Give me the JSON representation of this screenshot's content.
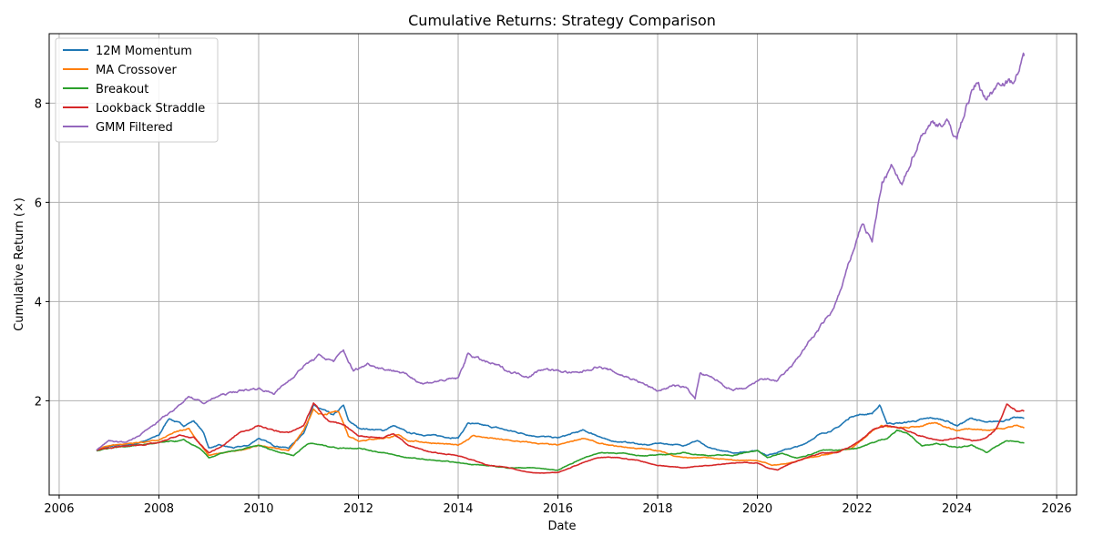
{
  "chart_data": {
    "type": "line",
    "title": "Cumulative Returns: Strategy Comparison",
    "xlabel": "Date",
    "ylabel": "Cumulative Return (×)",
    "xlim": [
      2005.8,
      2026.4
    ],
    "ylim": [
      0.1,
      9.4
    ],
    "x_ticks": [
      2006,
      2008,
      2010,
      2012,
      2014,
      2016,
      2018,
      2020,
      2022,
      2024,
      2026
    ],
    "y_ticks": [
      2,
      4,
      6,
      8
    ],
    "grid": true,
    "legend_position": "upper left",
    "series": [
      {
        "name": "12M Momentum",
        "color": "#1f77b4",
        "points": [
          [
            2006.75,
            1.0
          ],
          [
            2007.0,
            1.08
          ],
          [
            2007.5,
            1.12
          ],
          [
            2008.0,
            1.3
          ],
          [
            2008.2,
            1.65
          ],
          [
            2008.5,
            1.5
          ],
          [
            2008.7,
            1.6
          ],
          [
            2008.9,
            1.35
          ],
          [
            2009.0,
            1.05
          ],
          [
            2009.2,
            1.1
          ],
          [
            2009.5,
            1.05
          ],
          [
            2009.8,
            1.1
          ],
          [
            2010.0,
            1.25
          ],
          [
            2010.3,
            1.1
          ],
          [
            2010.6,
            1.05
          ],
          [
            2010.9,
            1.35
          ],
          [
            2011.1,
            1.9
          ],
          [
            2011.3,
            1.8
          ],
          [
            2011.5,
            1.7
          ],
          [
            2011.7,
            1.9
          ],
          [
            2011.8,
            1.6
          ],
          [
            2012.0,
            1.45
          ],
          [
            2012.5,
            1.4
          ],
          [
            2012.7,
            1.5
          ],
          [
            2013.0,
            1.35
          ],
          [
            2013.5,
            1.3
          ],
          [
            2014.0,
            1.25
          ],
          [
            2014.2,
            1.55
          ],
          [
            2014.5,
            1.5
          ],
          [
            2014.8,
            1.45
          ],
          [
            2015.0,
            1.4
          ],
          [
            2015.5,
            1.3
          ],
          [
            2016.0,
            1.25
          ],
          [
            2016.5,
            1.4
          ],
          [
            2016.8,
            1.3
          ],
          [
            2017.0,
            1.2
          ],
          [
            2017.5,
            1.15
          ],
          [
            2017.8,
            1.1
          ],
          [
            2018.0,
            1.15
          ],
          [
            2018.5,
            1.1
          ],
          [
            2018.8,
            1.2
          ],
          [
            2019.0,
            1.05
          ],
          [
            2019.5,
            0.95
          ],
          [
            2020.0,
            1.0
          ],
          [
            2020.2,
            0.9
          ],
          [
            2020.5,
            1.0
          ],
          [
            2020.9,
            1.1
          ],
          [
            2021.2,
            1.3
          ],
          [
            2021.6,
            1.45
          ],
          [
            2021.9,
            1.7
          ],
          [
            2022.3,
            1.75
          ],
          [
            2022.45,
            1.9
          ],
          [
            2022.6,
            1.55
          ],
          [
            2022.9,
            1.55
          ],
          [
            2023.2,
            1.6
          ],
          [
            2023.5,
            1.65
          ],
          [
            2023.8,
            1.6
          ],
          [
            2024.0,
            1.5
          ],
          [
            2024.3,
            1.65
          ],
          [
            2024.6,
            1.55
          ],
          [
            2024.9,
            1.6
          ],
          [
            2025.1,
            1.65
          ],
          [
            2025.35,
            1.65
          ]
        ]
      },
      {
        "name": "MA Crossover",
        "color": "#ff7f0e",
        "points": [
          [
            2006.75,
            1.0
          ],
          [
            2007.0,
            1.1
          ],
          [
            2007.5,
            1.15
          ],
          [
            2008.0,
            1.2
          ],
          [
            2008.3,
            1.35
          ],
          [
            2008.6,
            1.45
          ],
          [
            2008.8,
            1.15
          ],
          [
            2009.0,
            0.9
          ],
          [
            2009.3,
            0.95
          ],
          [
            2009.6,
            1.0
          ],
          [
            2010.0,
            1.1
          ],
          [
            2010.3,
            1.05
          ],
          [
            2010.6,
            1.0
          ],
          [
            2010.9,
            1.4
          ],
          [
            2011.1,
            1.8
          ],
          [
            2011.3,
            1.7
          ],
          [
            2011.6,
            1.8
          ],
          [
            2011.8,
            1.3
          ],
          [
            2012.0,
            1.2
          ],
          [
            2012.5,
            1.25
          ],
          [
            2012.8,
            1.3
          ],
          [
            2013.0,
            1.2
          ],
          [
            2013.5,
            1.15
          ],
          [
            2014.0,
            1.1
          ],
          [
            2014.3,
            1.3
          ],
          [
            2014.6,
            1.25
          ],
          [
            2015.0,
            1.2
          ],
          [
            2015.5,
            1.15
          ],
          [
            2016.0,
            1.1
          ],
          [
            2016.5,
            1.25
          ],
          [
            2016.8,
            1.15
          ],
          [
            2017.0,
            1.1
          ],
          [
            2017.5,
            1.05
          ],
          [
            2018.0,
            1.0
          ],
          [
            2018.3,
            0.9
          ],
          [
            2018.6,
            0.85
          ],
          [
            2019.0,
            0.85
          ],
          [
            2019.5,
            0.8
          ],
          [
            2020.0,
            0.8
          ],
          [
            2020.3,
            0.7
          ],
          [
            2020.7,
            0.75
          ],
          [
            2021.0,
            0.85
          ],
          [
            2021.5,
            0.95
          ],
          [
            2021.9,
            1.05
          ],
          [
            2022.3,
            1.4
          ],
          [
            2022.5,
            1.5
          ],
          [
            2022.8,
            1.45
          ],
          [
            2023.0,
            1.45
          ],
          [
            2023.3,
            1.5
          ],
          [
            2023.6,
            1.55
          ],
          [
            2024.0,
            1.4
          ],
          [
            2024.3,
            1.45
          ],
          [
            2024.6,
            1.4
          ],
          [
            2024.9,
            1.45
          ],
          [
            2025.2,
            1.5
          ],
          [
            2025.35,
            1.45
          ]
        ]
      },
      {
        "name": "Breakout",
        "color": "#2ca02c",
        "points": [
          [
            2006.75,
            1.0
          ],
          [
            2007.0,
            1.05
          ],
          [
            2007.5,
            1.1
          ],
          [
            2008.0,
            1.15
          ],
          [
            2008.5,
            1.2
          ],
          [
            2008.8,
            1.05
          ],
          [
            2009.0,
            0.85
          ],
          [
            2009.3,
            0.95
          ],
          [
            2009.6,
            1.0
          ],
          [
            2010.0,
            1.1
          ],
          [
            2010.3,
            1.0
          ],
          [
            2010.7,
            0.9
          ],
          [
            2011.0,
            1.15
          ],
          [
            2011.3,
            1.1
          ],
          [
            2011.6,
            1.05
          ],
          [
            2012.0,
            1.05
          ],
          [
            2012.5,
            0.95
          ],
          [
            2013.0,
            0.85
          ],
          [
            2013.5,
            0.8
          ],
          [
            2014.0,
            0.75
          ],
          [
            2014.5,
            0.7
          ],
          [
            2015.0,
            0.65
          ],
          [
            2015.5,
            0.65
          ],
          [
            2016.0,
            0.6
          ],
          [
            2016.4,
            0.8
          ],
          [
            2016.8,
            0.95
          ],
          [
            2017.2,
            0.95
          ],
          [
            2017.6,
            0.9
          ],
          [
            2018.0,
            0.9
          ],
          [
            2018.5,
            0.95
          ],
          [
            2019.0,
            0.9
          ],
          [
            2019.5,
            0.9
          ],
          [
            2020.0,
            1.0
          ],
          [
            2020.2,
            0.85
          ],
          [
            2020.5,
            0.95
          ],
          [
            2020.8,
            0.85
          ],
          [
            2021.0,
            0.9
          ],
          [
            2021.3,
            1.0
          ],
          [
            2021.6,
            1.0
          ],
          [
            2022.0,
            1.05
          ],
          [
            2022.3,
            1.15
          ],
          [
            2022.6,
            1.25
          ],
          [
            2022.8,
            1.4
          ],
          [
            2023.0,
            1.35
          ],
          [
            2023.3,
            1.1
          ],
          [
            2023.6,
            1.15
          ],
          [
            2024.0,
            1.05
          ],
          [
            2024.3,
            1.1
          ],
          [
            2024.6,
            0.95
          ],
          [
            2024.8,
            1.1
          ],
          [
            2025.0,
            1.2
          ],
          [
            2025.35,
            1.15
          ]
        ]
      },
      {
        "name": "Lookback Straddle",
        "color": "#d62728",
        "points": [
          [
            2006.75,
            1.0
          ],
          [
            2007.0,
            1.05
          ],
          [
            2007.5,
            1.1
          ],
          [
            2008.0,
            1.15
          ],
          [
            2008.4,
            1.3
          ],
          [
            2008.7,
            1.25
          ],
          [
            2009.0,
            0.95
          ],
          [
            2009.3,
            1.1
          ],
          [
            2009.6,
            1.35
          ],
          [
            2010.0,
            1.5
          ],
          [
            2010.3,
            1.4
          ],
          [
            2010.6,
            1.35
          ],
          [
            2010.9,
            1.5
          ],
          [
            2011.1,
            1.95
          ],
          [
            2011.4,
            1.6
          ],
          [
            2011.7,
            1.5
          ],
          [
            2012.0,
            1.3
          ],
          [
            2012.5,
            1.25
          ],
          [
            2012.7,
            1.35
          ],
          [
            2013.0,
            1.1
          ],
          [
            2013.5,
            0.95
          ],
          [
            2014.0,
            0.9
          ],
          [
            2014.3,
            0.8
          ],
          [
            2014.6,
            0.7
          ],
          [
            2015.0,
            0.65
          ],
          [
            2015.5,
            0.55
          ],
          [
            2016.0,
            0.55
          ],
          [
            2016.5,
            0.75
          ],
          [
            2016.8,
            0.85
          ],
          [
            2017.2,
            0.85
          ],
          [
            2017.6,
            0.8
          ],
          [
            2018.0,
            0.7
          ],
          [
            2018.5,
            0.65
          ],
          [
            2019.0,
            0.7
          ],
          [
            2019.5,
            0.75
          ],
          [
            2020.0,
            0.75
          ],
          [
            2020.2,
            0.65
          ],
          [
            2020.4,
            0.6
          ],
          [
            2020.7,
            0.75
          ],
          [
            2021.0,
            0.85
          ],
          [
            2021.3,
            0.95
          ],
          [
            2021.6,
            0.95
          ],
          [
            2022.0,
            1.15
          ],
          [
            2022.3,
            1.4
          ],
          [
            2022.6,
            1.5
          ],
          [
            2022.9,
            1.45
          ],
          [
            2023.1,
            1.35
          ],
          [
            2023.4,
            1.25
          ],
          [
            2023.7,
            1.2
          ],
          [
            2024.0,
            1.25
          ],
          [
            2024.3,
            1.2
          ],
          [
            2024.6,
            1.25
          ],
          [
            2024.8,
            1.45
          ],
          [
            2025.0,
            1.9
          ],
          [
            2025.2,
            1.8
          ],
          [
            2025.35,
            1.8
          ]
        ]
      },
      {
        "name": "GMM Filtered",
        "color": "#9467bd",
        "points": [
          [
            2006.75,
            1.0
          ],
          [
            2007.0,
            1.2
          ],
          [
            2007.3,
            1.15
          ],
          [
            2007.6,
            1.3
          ],
          [
            2008.0,
            1.6
          ],
          [
            2008.3,
            1.8
          ],
          [
            2008.6,
            2.1
          ],
          [
            2008.9,
            1.95
          ],
          [
            2009.2,
            2.1
          ],
          [
            2009.6,
            2.2
          ],
          [
            2010.0,
            2.25
          ],
          [
            2010.3,
            2.15
          ],
          [
            2010.6,
            2.4
          ],
          [
            2010.9,
            2.7
          ],
          [
            2011.2,
            2.9
          ],
          [
            2011.5,
            2.8
          ],
          [
            2011.7,
            3.0
          ],
          [
            2011.9,
            2.6
          ],
          [
            2012.2,
            2.75
          ],
          [
            2012.5,
            2.65
          ],
          [
            2012.8,
            2.6
          ],
          [
            2013.0,
            2.5
          ],
          [
            2013.3,
            2.35
          ],
          [
            2013.6,
            2.4
          ],
          [
            2014.0,
            2.45
          ],
          [
            2014.2,
            2.95
          ],
          [
            2014.5,
            2.8
          ],
          [
            2014.8,
            2.7
          ],
          [
            2015.0,
            2.6
          ],
          [
            2015.4,
            2.5
          ],
          [
            2015.7,
            2.65
          ],
          [
            2016.0,
            2.6
          ],
          [
            2016.4,
            2.55
          ],
          [
            2016.8,
            2.7
          ],
          [
            2017.2,
            2.55
          ],
          [
            2017.6,
            2.4
          ],
          [
            2018.0,
            2.2
          ],
          [
            2018.3,
            2.3
          ],
          [
            2018.6,
            2.25
          ],
          [
            2018.75,
            2.05
          ],
          [
            2018.85,
            2.55
          ],
          [
            2019.2,
            2.4
          ],
          [
            2019.5,
            2.2
          ],
          [
            2019.8,
            2.25
          ],
          [
            2020.1,
            2.45
          ],
          [
            2020.4,
            2.4
          ],
          [
            2020.7,
            2.7
          ],
          [
            2020.9,
            3.0
          ],
          [
            2021.2,
            3.4
          ],
          [
            2021.5,
            3.8
          ],
          [
            2021.7,
            4.3
          ],
          [
            2021.85,
            4.8
          ],
          [
            2022.1,
            5.6
          ],
          [
            2022.3,
            5.2
          ],
          [
            2022.5,
            6.4
          ],
          [
            2022.7,
            6.7
          ],
          [
            2022.9,
            6.3
          ],
          [
            2023.1,
            6.9
          ],
          [
            2023.3,
            7.4
          ],
          [
            2023.5,
            7.6
          ],
          [
            2023.8,
            7.6
          ],
          [
            2024.0,
            7.3
          ],
          [
            2024.2,
            8.0
          ],
          [
            2024.4,
            8.4
          ],
          [
            2024.6,
            8.1
          ],
          [
            2024.9,
            8.5
          ],
          [
            2025.1,
            8.4
          ],
          [
            2025.3,
            8.8
          ],
          [
            2025.35,
            8.95
          ]
        ]
      }
    ]
  }
}
